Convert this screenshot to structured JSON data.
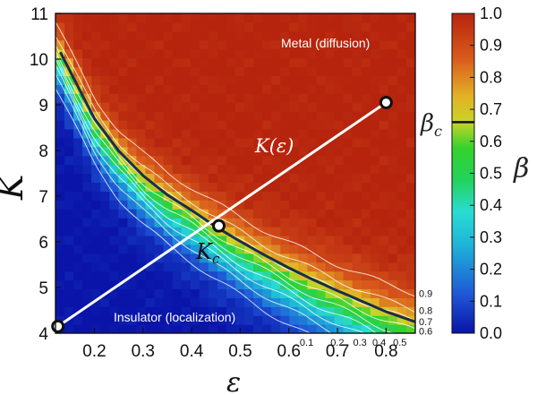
{
  "chart_data": {
    "type": "heatmap",
    "title": "",
    "xlabel": "ε",
    "ylabel": "K",
    "xlim": [
      0.12,
      0.86
    ],
    "ylim": [
      4,
      11
    ],
    "x_ticks": [
      "0.2",
      "0.3",
      "0.4",
      "0.5",
      "0.6",
      "0.7",
      "0.8"
    ],
    "y_ticks": [
      "4",
      "5",
      "6",
      "7",
      "8",
      "9",
      "10",
      "11"
    ],
    "colorbar": {
      "label": "β",
      "range": [
        0.0,
        1.0
      ],
      "ticks": [
        "0.0",
        "0.1",
        "0.2",
        "0.3",
        "0.4",
        "0.5",
        "0.6",
        "0.7",
        "0.8",
        "0.9",
        "1.0"
      ],
      "critical_label": "βc",
      "critical_value": 0.66,
      "colormap": [
        "#0a14a8",
        "#1e56d6",
        "#1eb6d8",
        "#2adcd2",
        "#22d25a",
        "#36d22c",
        "#c8d428",
        "#e3b226",
        "#d95a1c",
        "#b6240e"
      ]
    },
    "contour_levels": [
      "0.1",
      "0.2",
      "0.3",
      "0.4",
      "0.5",
      "0.6",
      "0.7",
      "0.8",
      "0.9"
    ],
    "critical_curve": {
      "label": "Kc",
      "x": [
        0.13,
        0.2,
        0.25,
        0.3,
        0.35,
        0.4,
        0.45,
        0.5,
        0.55,
        0.6,
        0.65,
        0.7,
        0.75,
        0.8,
        0.86
      ],
      "y": [
        10.15,
        8.7,
        7.99,
        7.45,
        7.03,
        6.69,
        6.33,
        6.01,
        5.71,
        5.43,
        5.17,
        4.93,
        4.7,
        4.47,
        4.25
      ]
    },
    "path": {
      "label": "K(ε)",
      "x": [
        0.125,
        0.8
      ],
      "y": [
        4.15,
        9.05
      ]
    },
    "points": [
      {
        "name": "start",
        "x": 0.125,
        "y": 4.15
      },
      {
        "name": "critical-point",
        "x": 0.456,
        "y": 6.35
      },
      {
        "name": "end",
        "x": 0.8,
        "y": 9.05
      }
    ],
    "annotations": {
      "metal": "Metal (diffusion)",
      "insulator": "Insulator (localization)",
      "kc": "Kc",
      "path": "K(ε)"
    }
  },
  "colors": {
    "critical_curve": "#1a2e4a",
    "path": "#ffffff",
    "contour": "#ffffff"
  }
}
